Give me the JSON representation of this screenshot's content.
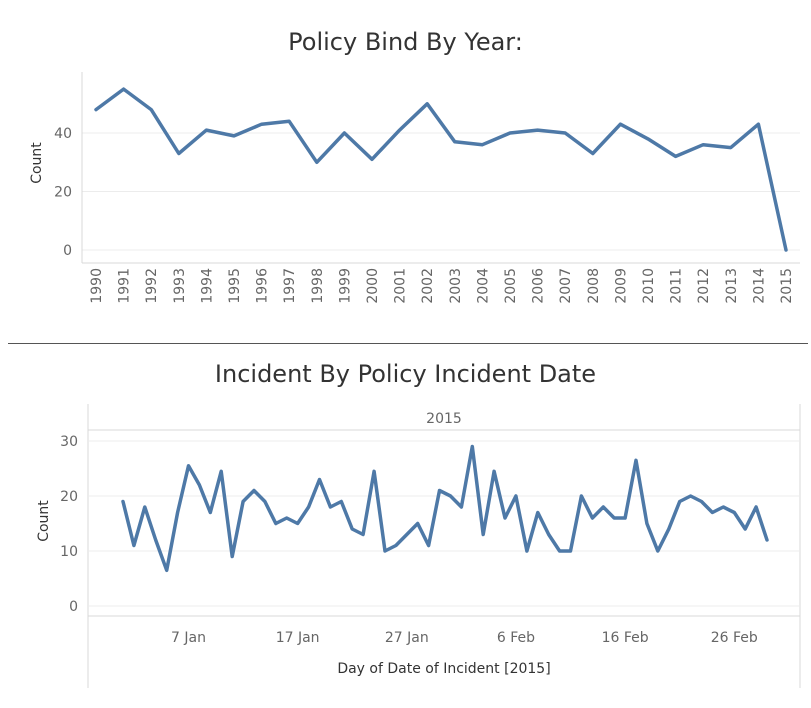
{
  "chart_data": [
    {
      "type": "line",
      "title": "Policy Bind By Year:",
      "xlabel": "",
      "ylabel": "Count",
      "x": [
        "1990",
        "1991",
        "1992",
        "1993",
        "1994",
        "1995",
        "1996",
        "1997",
        "1998",
        "1999",
        "2000",
        "2001",
        "2002",
        "2003",
        "2004",
        "2005",
        "2006",
        "2007",
        "2008",
        "2009",
        "2010",
        "2011",
        "2012",
        "2013",
        "2014",
        "2015"
      ],
      "values": [
        48,
        55,
        48,
        33,
        41,
        39,
        43,
        44,
        30,
        40,
        31,
        41,
        50,
        37,
        36,
        40,
        41,
        40,
        33,
        43,
        38,
        32,
        36,
        35,
        43,
        0
      ],
      "yticks": [
        0,
        20,
        40
      ],
      "ylim": [
        0,
        57
      ],
      "color": "#4e79a7"
    },
    {
      "type": "line",
      "title": "Incident By Policy Incident Date",
      "panel_header": "2015",
      "xlabel": "Day of Date of Incident [2015]",
      "ylabel": "Count",
      "x_start_day": 1,
      "xticks": [
        {
          "day": 7,
          "label": "7 Jan"
        },
        {
          "day": 17,
          "label": "17 Jan"
        },
        {
          "day": 27,
          "label": "27 Jan"
        },
        {
          "day": 37,
          "label": "6 Feb"
        },
        {
          "day": 47,
          "label": "16 Feb"
        },
        {
          "day": 57,
          "label": "26 Feb"
        }
      ],
      "values": [
        19,
        11,
        18,
        12,
        6.5,
        17,
        25.5,
        22,
        17,
        24.5,
        9,
        19,
        21,
        19,
        15,
        16,
        15,
        18,
        23,
        18,
        19,
        14,
        13,
        24.5,
        10,
        11,
        13,
        15,
        11,
        21,
        20,
        18,
        29,
        13,
        24.5,
        16,
        20,
        10,
        17,
        13,
        10,
        10,
        20,
        16,
        18,
        16,
        16,
        26.5,
        15,
        10,
        14,
        19,
        20,
        19,
        17,
        18,
        17,
        14,
        18,
        12
      ],
      "yticks": [
        0,
        10,
        20,
        30
      ],
      "ylim": [
        -1,
        31.5
      ],
      "color": "#4e79a7"
    }
  ]
}
